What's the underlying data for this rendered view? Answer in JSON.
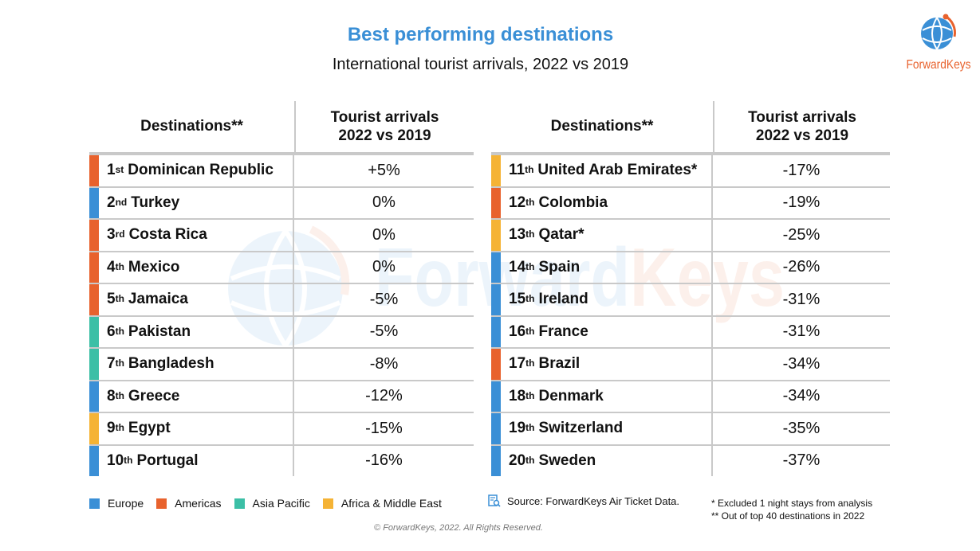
{
  "header": {
    "title": "Best performing destinations",
    "subtitle": "International tourist arrivals, 2022 vs 2019"
  },
  "logo": {
    "text": "ForwardKeys",
    "icon": "globe-icon"
  },
  "watermark": {
    "text": "ForwardKeys"
  },
  "colors": {
    "europe": "#3a8fd6",
    "americas": "#e8622d",
    "asia_pacific": "#3cbfa6",
    "africa_middle_east": "#f5b335",
    "title": "#3a8fd6"
  },
  "table_headers": {
    "destinations": "Destinations**",
    "arrivals_line1": "Tourist arrivals",
    "arrivals_line2": "2022 vs 2019"
  },
  "left_rows": [
    {
      "rank": "1",
      "suffix": "st",
      "name": "Dominican Republic",
      "value": "+5%",
      "region": "americas"
    },
    {
      "rank": "2",
      "suffix": "nd",
      "name": "Turkey",
      "value": "0%",
      "region": "europe"
    },
    {
      "rank": "3",
      "suffix": "rd",
      "name": "Costa Rica",
      "value": "0%",
      "region": "americas"
    },
    {
      "rank": "4",
      "suffix": "th",
      "name": "Mexico",
      "value": "0%",
      "region": "americas"
    },
    {
      "rank": "5",
      "suffix": "th",
      "name": "Jamaica",
      "value": "-5%",
      "region": "americas"
    },
    {
      "rank": "6",
      "suffix": "th",
      "name": "Pakistan",
      "value": "-5%",
      "region": "asia_pacific"
    },
    {
      "rank": "7",
      "suffix": "th",
      "name": "Bangladesh",
      "value": "-8%",
      "region": "asia_pacific"
    },
    {
      "rank": "8",
      "suffix": "th",
      "name": "Greece",
      "value": "-12%",
      "region": "europe"
    },
    {
      "rank": "9",
      "suffix": "th",
      "name": "Egypt",
      "value": "-15%",
      "region": "africa_middle_east"
    },
    {
      "rank": "10",
      "suffix": "th",
      "name": "Portugal",
      "value": "-16%",
      "region": "europe"
    }
  ],
  "right_rows": [
    {
      "rank": "11",
      "suffix": "th",
      "name": "United Arab Emirates*",
      "value": "-17%",
      "region": "africa_middle_east"
    },
    {
      "rank": "12",
      "suffix": "th",
      "name": "Colombia",
      "value": "-19%",
      "region": "americas"
    },
    {
      "rank": "13",
      "suffix": "th",
      "name": "Qatar*",
      "value": "-25%",
      "region": "africa_middle_east"
    },
    {
      "rank": "14",
      "suffix": "th",
      "name": "Spain",
      "value": "-26%",
      "region": "europe"
    },
    {
      "rank": "15",
      "suffix": "th",
      "name": "Ireland",
      "value": "-31%",
      "region": "europe"
    },
    {
      "rank": "16",
      "suffix": "th",
      "name": "France",
      "value": "-31%",
      "region": "europe"
    },
    {
      "rank": "17",
      "suffix": "th",
      "name": "Brazil",
      "value": "-34%",
      "region": "americas"
    },
    {
      "rank": "18",
      "suffix": "th",
      "name": "Denmark",
      "value": "-34%",
      "region": "europe"
    },
    {
      "rank": "19",
      "suffix": "th",
      "name": "Switzerland",
      "value": "-35%",
      "region": "europe"
    },
    {
      "rank": "20",
      "suffix": "th",
      "name": "Sweden",
      "value": "-37%",
      "region": "europe"
    }
  ],
  "legend": [
    {
      "label": "Europe",
      "region": "europe"
    },
    {
      "label": "Americas",
      "region": "americas"
    },
    {
      "label": "Asia Pacific",
      "region": "asia_pacific"
    },
    {
      "label": "Africa & Middle East",
      "region": "africa_middle_east"
    }
  ],
  "footer": {
    "source": "Source: ForwardKeys Air Ticket Data.",
    "source_icon": "data-search-icon",
    "note1": "* Excluded 1 night stays from analysis",
    "note2": "** Out of top 40 destinations in 2022",
    "copyright": "© ForwardKeys, 2022. All Rights Reserved."
  }
}
